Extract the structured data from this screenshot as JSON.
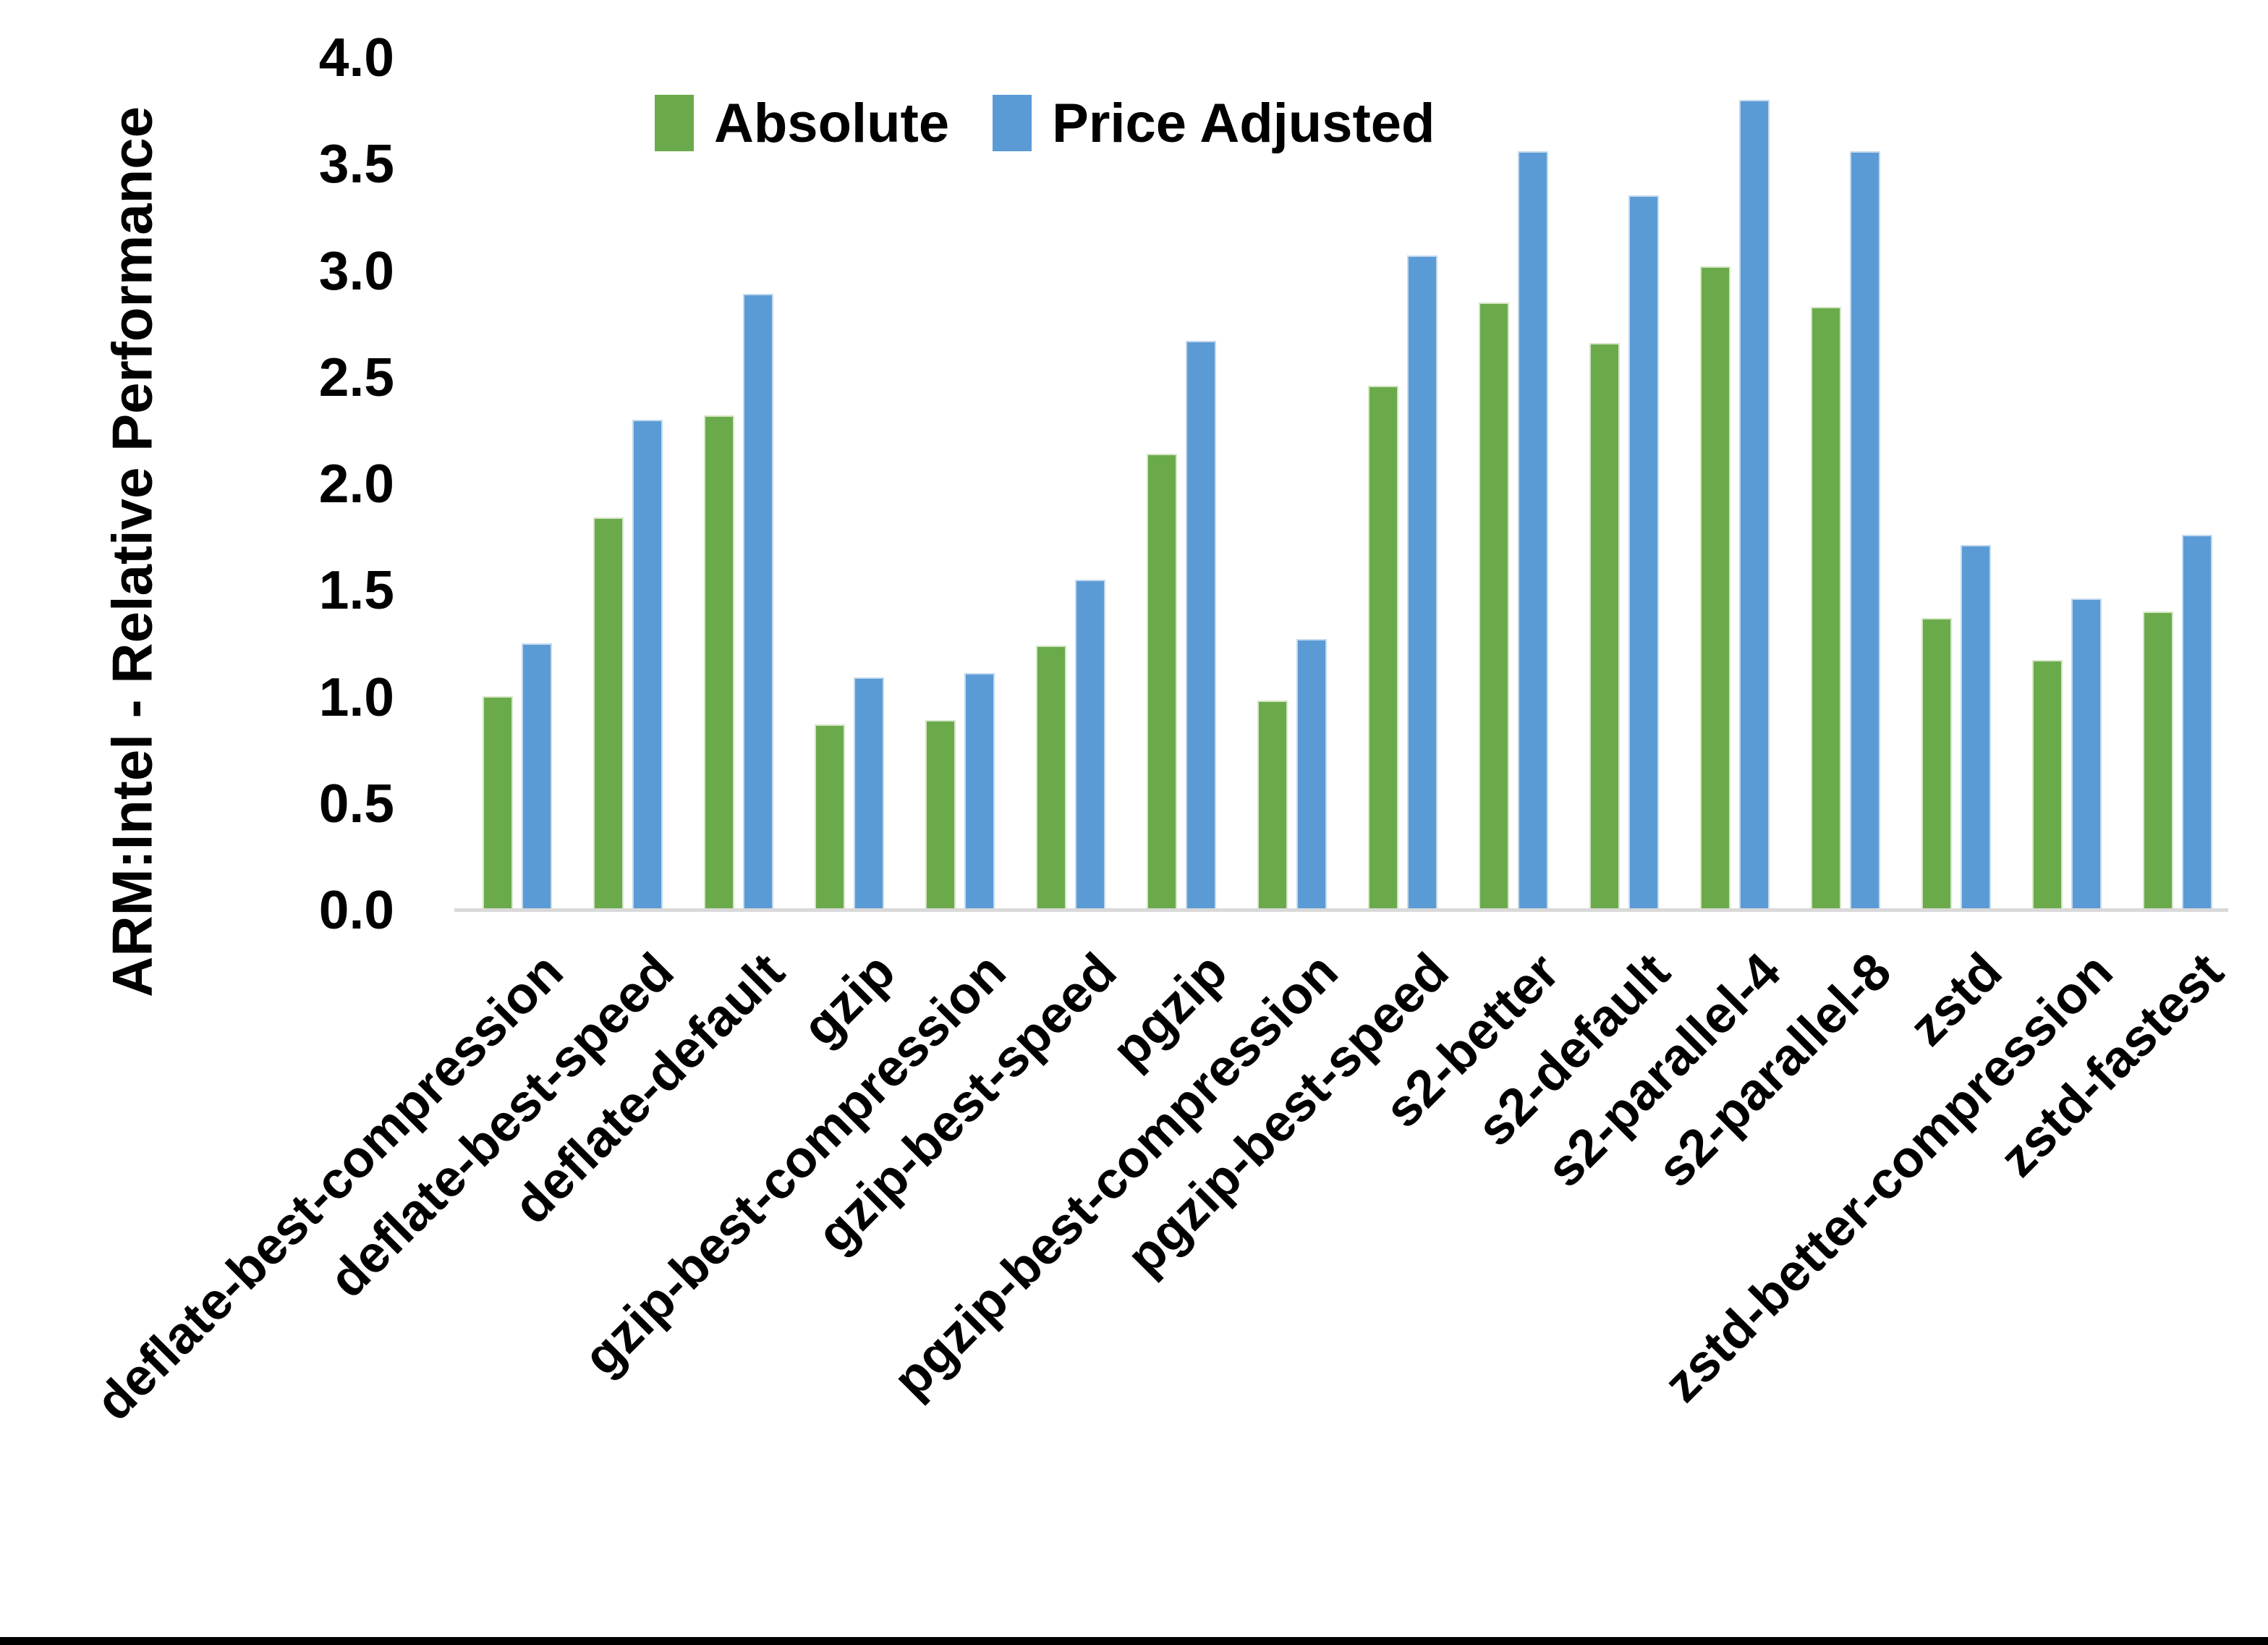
{
  "figure": {
    "background": "#ffffff",
    "bottom_border_color": "#000000"
  },
  "legend": {
    "absolute_label": "Absolute",
    "price_adjusted_label": "Price Adjusted"
  },
  "chart_data": {
    "type": "bar",
    "title": "",
    "xlabel": "",
    "ylabel": "ARM:Intel - Relative Performance",
    "ylim": [
      0.0,
      4.0
    ],
    "ytick_labels": [
      "0.0",
      "0.5",
      "1.0",
      "1.5",
      "2.0",
      "2.5",
      "3.0",
      "3.5",
      "4.0"
    ],
    "grid": "off",
    "legend_position": "top-center",
    "categories": [
      "deflate-best-compression",
      "deflate-best-speed",
      "deflate-default",
      "gzip",
      "gzip-best-compression",
      "gzip-best-speed",
      "pgzip",
      "pgzip-best-compression",
      "pgzip-best-speed",
      "s2-better",
      "s2-default",
      "s2-parallel-4",
      "s2-parallel-8",
      "zstd",
      "zstd-better-compression",
      "zstd-fastest"
    ],
    "series": [
      {
        "name": "Absolute",
        "color": "#6aaa4b",
        "values": [
          1.0,
          1.84,
          2.32,
          0.87,
          0.89,
          1.24,
          2.14,
          0.98,
          2.46,
          2.85,
          2.66,
          3.02,
          2.83,
          1.37,
          1.17,
          1.4
        ]
      },
      {
        "name": "Price Adjusted",
        "color": "#5b9bd5",
        "values": [
          1.25,
          2.3,
          2.89,
          1.09,
          1.11,
          1.55,
          2.67,
          1.27,
          3.07,
          3.56,
          3.35,
          3.8,
          3.56,
          1.71,
          1.46,
          1.76
        ]
      }
    ]
  }
}
